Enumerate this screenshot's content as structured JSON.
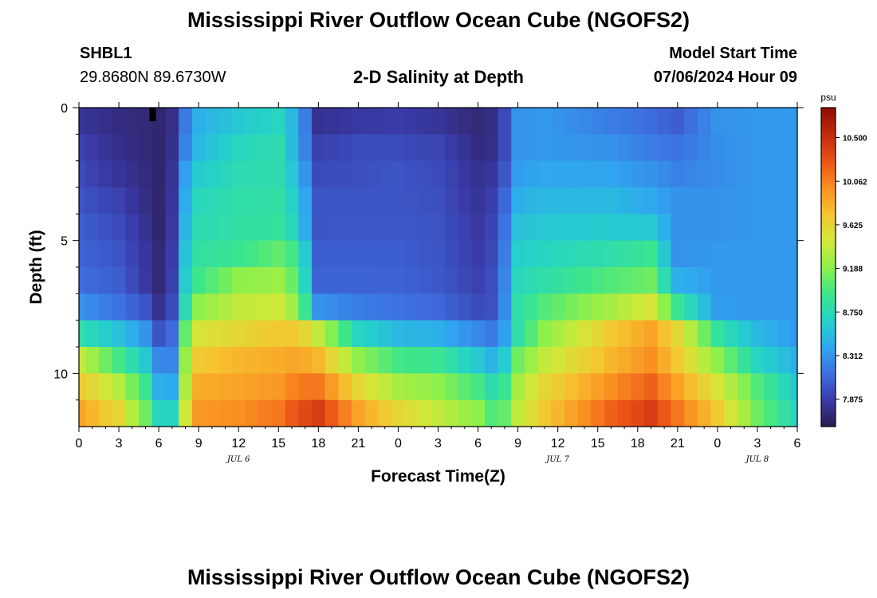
{
  "page": {
    "title": "Mississippi River Outflow Ocean Cube (NGOFS2)",
    "title_bottom": "Mississippi River Outflow Ocean Cube (NGOFS2)",
    "station": "SHBL1",
    "coords": "29.8680N  89.6730W",
    "subtitle": "2-D Salinity at Depth",
    "model_start_label": "Model Start Time",
    "model_start_value": "07/06/2024 Hour 09"
  },
  "colors": {
    "background": "#ffffff",
    "axis": "#000000",
    "colormap": [
      "#2b1b4e",
      "#3a3aa8",
      "#3e6fe0",
      "#2fa8f0",
      "#24d3c8",
      "#3ee68a",
      "#8ef04a",
      "#d2e838",
      "#f6c430",
      "#fa8f22",
      "#ea5218",
      "#c02a0c",
      "#8e0c04"
    ]
  },
  "chart_data": {
    "type": "heatmap",
    "title": "2-D Salinity at Depth",
    "xlabel": "Forecast Time(Z)",
    "ylabel": "Depth (ft)",
    "x_tick_labels": [
      "0",
      "3",
      "6",
      "9",
      "12",
      "15",
      "18",
      "21",
      "0",
      "3",
      "6",
      "9",
      "12",
      "15",
      "18",
      "21",
      "0",
      "3",
      "6"
    ],
    "x_range_hours": [
      0,
      54
    ],
    "date_labels": [
      {
        "label": "JUL 6",
        "hour": 12
      },
      {
        "label": "JUL 7",
        "hour": 36
      },
      {
        "label": "JUL 8",
        "hour": 51
      }
    ],
    "y_tick_labels": [
      "0",
      "5",
      "10"
    ],
    "y_range_ft": [
      0,
      12
    ],
    "y_inverted": true,
    "colorbar": {
      "unit": "psu",
      "range": [
        7.6,
        10.8
      ],
      "tick_values": [
        10.5,
        10.062,
        9.625,
        9.188,
        8.75,
        8.312,
        7.875
      ],
      "tick_labels": [
        "10.500",
        "10.062",
        "9.625",
        "9.188",
        "8.750",
        "8.312",
        "7.875"
      ]
    },
    "grid": false,
    "depth_levels_ft": [
      0.5,
      1.5,
      2.5,
      3.5,
      4.5,
      5.5,
      6.5,
      7.5,
      8.5,
      9.5,
      10.5,
      11.5
    ],
    "time_hours": [
      0,
      1,
      2,
      3,
      4,
      5,
      6,
      7,
      8,
      9,
      10,
      11,
      12,
      13,
      14,
      15,
      16,
      17,
      18,
      19,
      20,
      21,
      22,
      23,
      24,
      25,
      26,
      27,
      28,
      29,
      30,
      31,
      32,
      33,
      34,
      35,
      36,
      37,
      38,
      39,
      40,
      41,
      42,
      43,
      44,
      45,
      46,
      47,
      48,
      49,
      50,
      51,
      52,
      53,
      54
    ],
    "profile": {
      "time_hours": [
        0,
        3,
        5,
        6,
        6.8,
        7.5,
        8.3,
        9,
        12,
        15,
        16.5,
        18,
        21,
        24,
        27,
        30,
        31.5,
        33,
        35,
        40,
        43,
        45,
        48,
        51,
        54
      ],
      "per_depth_salinity_psu": [
        [
          7.82,
          7.75,
          7.72,
          7.7,
          7.72,
          7.9,
          8.35,
          8.45,
          8.6,
          8.7,
          8.4,
          7.8,
          7.85,
          7.87,
          7.82,
          7.72,
          7.78,
          8.3,
          8.33,
          8.2,
          8.12,
          8.05,
          8.3,
          8.33,
          8.33
        ],
        [
          7.9,
          7.78,
          7.72,
          7.7,
          7.72,
          7.95,
          8.4,
          8.5,
          8.7,
          8.78,
          8.4,
          7.9,
          7.95,
          7.95,
          7.92,
          7.75,
          7.78,
          8.3,
          8.33,
          8.3,
          8.2,
          8.15,
          8.28,
          8.33,
          8.33
        ],
        [
          7.95,
          7.82,
          7.74,
          7.7,
          7.72,
          8.05,
          8.55,
          8.62,
          8.76,
          8.78,
          8.5,
          7.95,
          7.97,
          8.0,
          7.95,
          7.8,
          7.85,
          8.35,
          8.4,
          8.38,
          8.3,
          8.22,
          8.27,
          8.33,
          8.33
        ],
        [
          8.0,
          7.9,
          7.76,
          7.7,
          7.72,
          8.1,
          8.62,
          8.72,
          8.8,
          8.82,
          8.6,
          8.0,
          8.0,
          8.0,
          7.97,
          7.82,
          7.92,
          8.45,
          8.5,
          8.5,
          8.4,
          8.3,
          8.3,
          8.33,
          8.33
        ],
        [
          8.05,
          7.95,
          7.8,
          7.7,
          7.72,
          8.15,
          8.7,
          8.76,
          8.82,
          8.85,
          8.66,
          8.0,
          8.02,
          8.02,
          7.99,
          7.85,
          7.95,
          8.55,
          8.6,
          8.62,
          8.6,
          8.3,
          8.3,
          8.33,
          8.33
        ],
        [
          8.08,
          8.0,
          7.83,
          7.72,
          7.74,
          8.2,
          8.78,
          8.83,
          8.9,
          9.05,
          8.9,
          8.05,
          8.05,
          8.05,
          8.0,
          7.87,
          7.97,
          8.65,
          8.7,
          8.8,
          8.9,
          8.3,
          8.33,
          8.33,
          8.33
        ],
        [
          8.12,
          8.05,
          7.85,
          7.72,
          7.75,
          8.25,
          8.85,
          8.92,
          9.2,
          9.25,
          9.0,
          8.08,
          8.08,
          8.07,
          8.02,
          7.9,
          8.0,
          8.72,
          8.8,
          9.0,
          9.1,
          8.45,
          8.33,
          8.33,
          8.33
        ],
        [
          8.3,
          8.15,
          8.0,
          7.8,
          7.8,
          8.35,
          9.0,
          9.2,
          9.4,
          9.45,
          9.2,
          8.3,
          8.2,
          8.15,
          8.1,
          7.95,
          8.0,
          8.8,
          9.0,
          9.3,
          9.5,
          8.9,
          8.35,
          8.33,
          8.33
        ],
        [
          8.8,
          8.55,
          8.3,
          8.0,
          7.95,
          8.5,
          9.4,
          9.5,
          9.6,
          9.7,
          9.7,
          9.4,
          8.7,
          8.5,
          8.45,
          8.25,
          8.15,
          8.8,
          9.2,
          9.7,
          9.9,
          9.6,
          8.85,
          8.5,
          8.33
        ],
        [
          9.4,
          8.95,
          8.6,
          8.25,
          8.1,
          8.6,
          9.6,
          9.7,
          9.8,
          9.85,
          9.9,
          9.8,
          9.2,
          8.95,
          8.9,
          8.6,
          8.4,
          9.1,
          9.4,
          9.8,
          10.0,
          9.7,
          9.2,
          8.7,
          8.45
        ],
        [
          9.7,
          9.35,
          8.9,
          8.45,
          8.3,
          8.7,
          9.7,
          9.85,
          9.9,
          9.95,
          10.1,
          10.1,
          9.6,
          9.3,
          9.2,
          8.95,
          8.7,
          9.3,
          9.6,
          10.0,
          10.2,
          9.9,
          9.5,
          9.0,
          8.6
        ],
        [
          9.9,
          9.6,
          9.1,
          8.7,
          8.6,
          8.9,
          9.8,
          9.95,
          10.0,
          10.1,
          10.3,
          10.4,
          9.9,
          9.6,
          9.4,
          9.2,
          8.9,
          9.4,
          9.7,
          10.2,
          10.4,
          10.1,
          9.7,
          9.1,
          8.7
        ]
      ]
    }
  }
}
